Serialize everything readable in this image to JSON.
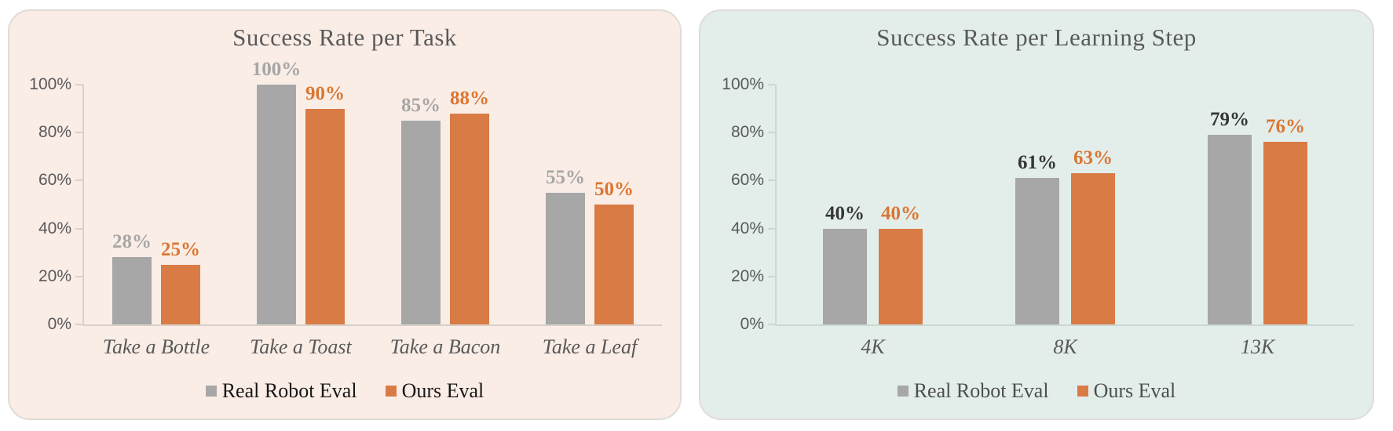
{
  "chart_data": [
    {
      "type": "bar",
      "title": "Success Rate per Task",
      "categories": [
        "Take a Bottle",
        "Take a Toast",
        "Take a Bacon",
        "Take a Leaf"
      ],
      "series": [
        {
          "name": "Real Robot Eval",
          "values": [
            28,
            100,
            85,
            55
          ],
          "value_labels": [
            "28%",
            "100%",
            "85%",
            "55%"
          ],
          "bar_color": "#A7A7A7",
          "label_color": "#A6A6A6"
        },
        {
          "name": "Ours Eval",
          "values": [
            25,
            90,
            88,
            50
          ],
          "value_labels": [
            "25%",
            "90%",
            "88%",
            "50%"
          ],
          "bar_color": "#D97B45",
          "label_color": "#DB7631"
        }
      ],
      "xlabel": "",
      "ylabel": "",
      "ylim": [
        0,
        100
      ],
      "y_ticks": [
        "100%",
        "80%",
        "60%",
        "40%",
        "20%",
        "0%"
      ],
      "grid": false,
      "legend_position": "bottom",
      "panel_bg": "#FAEDE6",
      "axis_color": "#D8D1CA",
      "legend_text_color": "#171717"
    },
    {
      "type": "bar",
      "title": "Success Rate per Learning Step",
      "categories": [
        "4K",
        "8K",
        "13K"
      ],
      "series": [
        {
          "name": "Real Robot Eval",
          "values": [
            40,
            61,
            79
          ],
          "value_labels": [
            "40%",
            "61%",
            "79%"
          ],
          "bar_color": "#A7A7A7",
          "label_color": "#363636"
        },
        {
          "name": "Ours Eval",
          "values": [
            40,
            63,
            76
          ],
          "value_labels": [
            "40%",
            "63%",
            "76%"
          ],
          "bar_color": "#D97B45",
          "label_color": "#DB7631"
        }
      ],
      "xlabel": "",
      "ylabel": "",
      "ylim": [
        0,
        100
      ],
      "y_ticks": [
        "100%",
        "80%",
        "60%",
        "40%",
        "20%",
        "0%"
      ],
      "grid": false,
      "legend_position": "bottom",
      "panel_bg": "#E3EEEB",
      "axis_color": "#CBD8D3",
      "legend_text_color": "#4E4E4E"
    }
  ]
}
